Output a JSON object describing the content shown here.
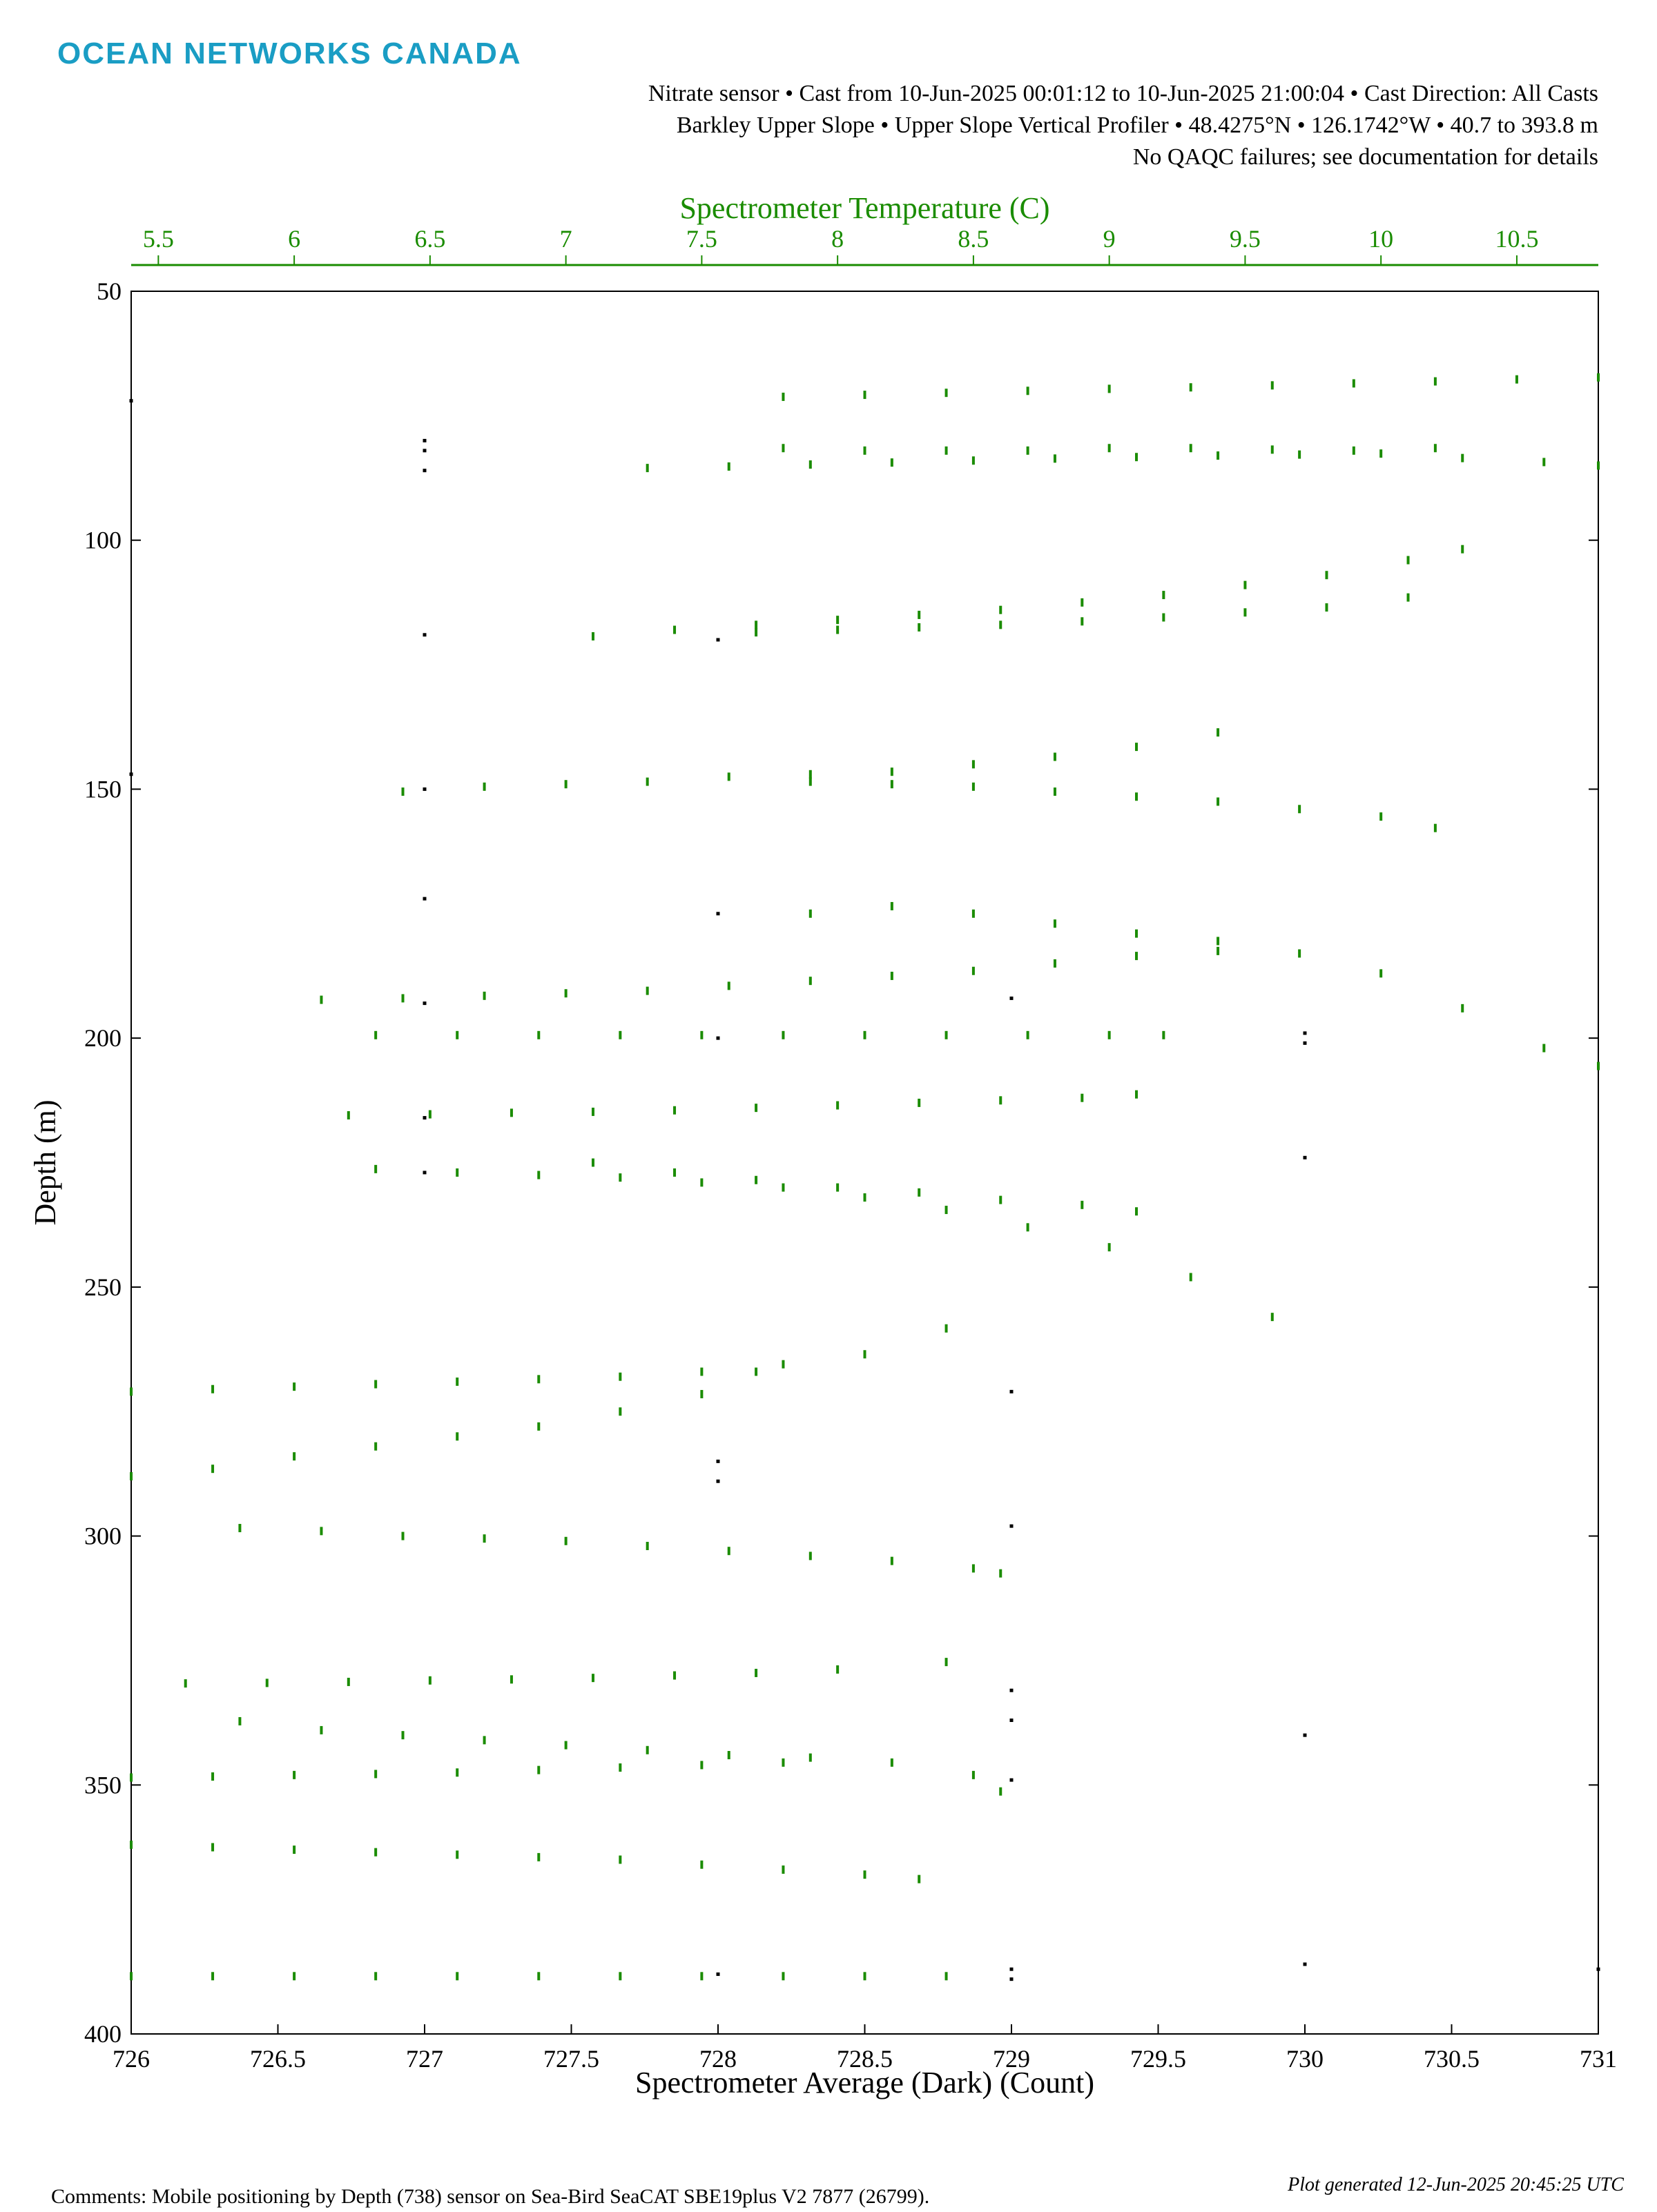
{
  "brand": "OCEAN NETWORKS CANADA",
  "header": [
    "Nitrate sensor • Cast from 10-Jun-2025 00:01:12 to 10-Jun-2025 21:00:04 • Cast Direction: All Casts",
    "Barkley Upper Slope • Upper Slope Vertical Profiler • 48.4275°N • 126.1742°W • 40.7 to 393.8 m",
    "No QAQC failures; see documentation for details"
  ],
  "footer": {
    "comments": "Comments: Mobile positioning by Depth (738) sensor on Sea-Bird SeaCAT SBE19plus V2 7877 (26799).",
    "generated": "Plot generated 12-Jun-2025 20:45:25 UTC"
  },
  "chart_data": {
    "type": "scatter",
    "x_label": "Spectrometer Average (Dark) (Count)",
    "x2_label": "Spectrometer Temperature (C)",
    "y_label": "Depth (m)",
    "xlim": [
      726,
      731
    ],
    "xticks": [
      726,
      726.5,
      727,
      727.5,
      728,
      728.5,
      729,
      729.5,
      730,
      730.5,
      731
    ],
    "x2lim": [
      5.4,
      10.8
    ],
    "x2ticks": [
      5.5,
      6,
      6.5,
      7,
      7.5,
      8,
      8.5,
      9,
      9.5,
      10,
      10.5
    ],
    "ylim": [
      400,
      50
    ],
    "yticks": [
      50,
      100,
      150,
      200,
      250,
      300,
      350,
      400
    ],
    "x2_color": "#1a8c00",
    "series": [
      {
        "color": "#000000",
        "x": [
          726,
          727,
          727,
          727,
          727,
          728,
          726,
          727,
          727,
          728,
          729,
          727,
          730,
          730,
          728,
          727,
          730,
          727,
          729,
          728,
          728,
          729,
          729,
          729,
          729,
          730,
          730,
          729,
          729,
          728,
          731
        ],
        "values": [
          72,
          80,
          82,
          86,
          119,
          120,
          147,
          150,
          172,
          175,
          192,
          193,
          199,
          201,
          200,
          216,
          224,
          227,
          271,
          285,
          289,
          298,
          331,
          337,
          349,
          340,
          386,
          387,
          389,
          388,
          387
        ]
      },
      {
        "color": "#1a8c00",
        "axis": "x2",
        "x": [
          7.8,
          8.1,
          8.4,
          8.7,
          9.0,
          9.3,
          9.6,
          9.9,
          10.2,
          10.5,
          10.8,
          7.8,
          8.1,
          8.4,
          8.7,
          9.0,
          9.3,
          9.6,
          9.9,
          10.2,
          7.3,
          7.6,
          7.9,
          8.2,
          8.5,
          8.8,
          9.1,
          9.4,
          9.7,
          10.0,
          10.3,
          10.6,
          10.8,
          7.1,
          7.4,
          7.7,
          8.0,
          8.3,
          8.6,
          8.9,
          9.2,
          9.5,
          9.8,
          10.1,
          10.3,
          7.7,
          8.0,
          8.3,
          8.6,
          8.9,
          9.2,
          9.5,
          9.8,
          10.1,
          6.4,
          6.7,
          7.0,
          7.3,
          7.6,
          7.9,
          8.2,
          8.5,
          8.8,
          9.1,
          9.4,
          7.9,
          8.2,
          8.5,
          8.8,
          9.1,
          9.4,
          9.7,
          10.0,
          10.2,
          7.9,
          8.2,
          8.5,
          8.8,
          9.1,
          9.4,
          9.7,
          10.0,
          10.3,
          10.6,
          10.8,
          6.1,
          6.4,
          6.7,
          7.0,
          7.3,
          7.6,
          7.9,
          8.2,
          8.5,
          8.8,
          9.1,
          9.4,
          6.3,
          6.6,
          6.9,
          7.2,
          7.5,
          7.8,
          8.1,
          8.4,
          8.7,
          9.0,
          9.2,
          6.2,
          6.5,
          6.8,
          7.1,
          7.4,
          7.7,
          8.0,
          8.3,
          8.6,
          8.9,
          9.1,
          6.3,
          6.6,
          6.9,
          7.2,
          7.5,
          7.8,
          8.1,
          8.4,
          8.7,
          9.0,
          9.3,
          9.6,
          7.1,
          7.4,
          7.7,
          8.0,
          8.3,
          8.6,
          8.9,
          9.1,
          5.4,
          5.7,
          6.0,
          6.3,
          6.6,
          6.9,
          7.2,
          7.5,
          7.8,
          8.1,
          8.4,
          5.4,
          5.7,
          6.0,
          6.3,
          6.6,
          6.9,
          7.2,
          7.5,
          7.7,
          5.8,
          6.1,
          6.4,
          6.7,
          7.0,
          7.3,
          7.6,
          7.9,
          8.2,
          8.5,
          8.6,
          5.6,
          5.9,
          6.2,
          6.5,
          6.8,
          7.1,
          7.4,
          7.7,
          8.0,
          8.4,
          5.8,
          6.1,
          6.4,
          6.7,
          7.0,
          7.3,
          7.6,
          7.9,
          8.2,
          8.5,
          8.6,
          5.4,
          5.7,
          6.0,
          6.3,
          6.6,
          6.9,
          7.2,
          7.5,
          7.8,
          5.4,
          5.7,
          6.0,
          6.3,
          6.6,
          6.9,
          7.2,
          7.5,
          7.8,
          8.1,
          8.3,
          5.4,
          5.7,
          6.0,
          6.3,
          6.6,
          6.9,
          7.2,
          7.5,
          7.8,
          8.1,
          8.4
        ],
        "values": [
          71.2,
          70.8,
          70.4,
          70.0,
          69.6,
          69.3,
          68.9,
          68.5,
          68.1,
          67.7,
          67.3,
          81.5,
          82,
          82,
          82,
          81.5,
          81.5,
          81.8,
          82,
          81.5,
          85.5,
          85.2,
          84.8,
          84.4,
          84,
          83.6,
          83.3,
          83,
          82.8,
          82.6,
          83.5,
          84.3,
          85,
          119.3,
          118,
          117,
          116,
          115,
          114,
          112.5,
          111,
          109,
          107,
          104,
          101.8,
          118.5,
          118,
          117.5,
          117,
          116.3,
          115.5,
          114.5,
          113.5,
          111.5,
          150.5,
          149.5,
          149,
          148.5,
          147.5,
          147,
          146.5,
          145,
          143.5,
          141.5,
          138.6,
          148.5,
          149,
          149.5,
          150.5,
          151.5,
          152.5,
          154,
          155.5,
          157.8,
          175,
          173.5,
          175,
          177,
          179,
          180.5,
          183,
          187,
          194,
          202,
          205.6,
          192.3,
          192,
          191.5,
          191,
          190.5,
          189.5,
          188.5,
          187.5,
          186.5,
          185,
          183.5,
          182.5,
          199.4,
          199.4,
          199.4,
          199.4,
          199.4,
          199.4,
          199.4,
          199.4,
          199.4,
          199.4,
          199.4,
          215.5,
          215.3,
          215,
          214.8,
          214.5,
          214,
          213.5,
          213,
          212.5,
          212,
          211.3,
          226.3,
          227,
          227.5,
          228,
          229,
          230,
          232,
          234.5,
          238,
          242,
          248,
          256,
          225,
          227,
          228.5,
          230,
          231,
          232.5,
          233.5,
          234.8,
          271,
          270.5,
          270,
          269.5,
          269,
          268.5,
          268,
          267,
          265.5,
          263.5,
          258.3,
          288,
          286.5,
          284,
          282,
          280,
          278,
          275,
          271.5,
          267,
          298.4,
          299,
          300,
          300.5,
          301,
          302,
          303,
          304,
          305,
          306.5,
          307.5,
          329.6,
          329.5,
          329.3,
          329,
          328.8,
          328.5,
          328,
          327.5,
          326.8,
          325.3,
          337.2,
          339,
          340,
          341,
          342,
          343,
          344,
          344.5,
          345.5,
          348,
          351.3,
          348.5,
          348.3,
          348,
          347.8,
          347.5,
          347,
          346.5,
          346,
          345.5,
          362,
          362.5,
          363,
          363.5,
          364,
          364.5,
          365,
          366,
          367,
          368,
          368.9,
          388.4,
          388.4,
          388.4,
          388.4,
          388.4,
          388.4,
          388.4,
          388.4,
          388.4,
          388.4,
          388.4
        ]
      }
    ]
  }
}
